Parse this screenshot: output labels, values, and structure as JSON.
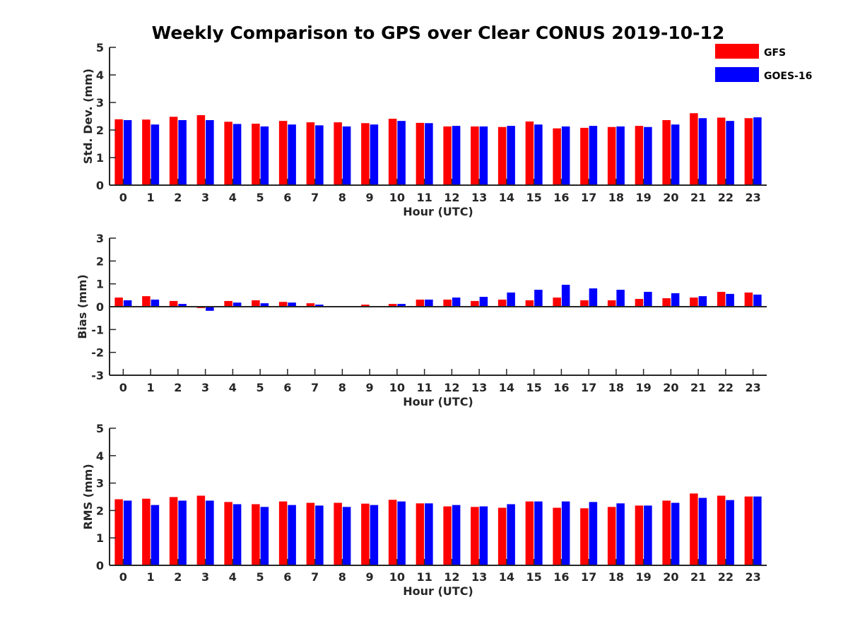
{
  "title": "Weekly Comparison to GPS over Clear CONUS 2019-10-12",
  "legend": {
    "items": [
      {
        "name": "GFS",
        "color": "#ff0000"
      },
      {
        "name": "GOES-16",
        "color": "#0000ff"
      }
    ],
    "placement": "top-right"
  },
  "chart_data": [
    {
      "type": "bar",
      "xlabel": "Hour (UTC)",
      "ylabel": "Std. Dev. (mm)",
      "ylim": [
        0,
        5
      ],
      "yticks": [
        "0",
        "1",
        "2",
        "3",
        "4",
        "5"
      ],
      "categories": [
        "0",
        "1",
        "2",
        "3",
        "4",
        "5",
        "6",
        "7",
        "8",
        "9",
        "10",
        "11",
        "12",
        "13",
        "14",
        "15",
        "16",
        "17",
        "18",
        "19",
        "20",
        "21",
        "22",
        "23"
      ],
      "series": [
        {
          "name": "GFS",
          "color": "#ff0000",
          "values": [
            2.39,
            2.38,
            2.48,
            2.54,
            2.3,
            2.23,
            2.33,
            2.28,
            2.28,
            2.25,
            2.41,
            2.26,
            2.13,
            2.13,
            2.11,
            2.31,
            2.06,
            2.08,
            2.11,
            2.15,
            2.36,
            2.61,
            2.45,
            2.43
          ]
        },
        {
          "name": "GOES-16",
          "color": "#0000ff",
          "values": [
            2.36,
            2.2,
            2.36,
            2.36,
            2.22,
            2.13,
            2.2,
            2.17,
            2.13,
            2.2,
            2.33,
            2.25,
            2.15,
            2.13,
            2.15,
            2.2,
            2.13,
            2.15,
            2.13,
            2.11,
            2.2,
            2.43,
            2.33,
            2.46
          ]
        }
      ]
    },
    {
      "type": "bar",
      "xlabel": "Hour (UTC)",
      "ylabel": "Bias (mm)",
      "ylim": [
        -3,
        3
      ],
      "yticks": [
        "-3",
        "-2",
        "-1",
        "0",
        "1",
        "2",
        "3"
      ],
      "categories": [
        "0",
        "1",
        "2",
        "3",
        "4",
        "5",
        "6",
        "7",
        "8",
        "9",
        "10",
        "11",
        "12",
        "13",
        "14",
        "15",
        "16",
        "17",
        "18",
        "19",
        "20",
        "21",
        "22",
        "23"
      ],
      "series": [
        {
          "name": "GFS",
          "color": "#ff0000",
          "values": [
            0.4,
            0.46,
            0.25,
            -0.06,
            0.25,
            0.28,
            0.21,
            0.15,
            0.03,
            0.09,
            0.12,
            0.31,
            0.31,
            0.25,
            0.31,
            0.28,
            0.4,
            0.28,
            0.28,
            0.34,
            0.37,
            0.4,
            0.65,
            0.62
          ]
        },
        {
          "name": "GOES-16",
          "color": "#0000ff",
          "values": [
            0.28,
            0.31,
            0.12,
            -0.18,
            0.18,
            0.15,
            0.18,
            0.09,
            0.0,
            0.03,
            0.12,
            0.31,
            0.4,
            0.43,
            0.62,
            0.74,
            0.96,
            0.8,
            0.74,
            0.65,
            0.59,
            0.46,
            0.56,
            0.53
          ]
        }
      ]
    },
    {
      "type": "bar",
      "xlabel": "Hour (UTC)",
      "ylabel": "RMS (mm)",
      "ylim": [
        0,
        5
      ],
      "yticks": [
        "0",
        "1",
        "2",
        "3",
        "4",
        "5"
      ],
      "categories": [
        "0",
        "1",
        "2",
        "3",
        "4",
        "5",
        "6",
        "7",
        "8",
        "9",
        "10",
        "11",
        "12",
        "13",
        "14",
        "15",
        "16",
        "17",
        "18",
        "19",
        "20",
        "21",
        "22",
        "23"
      ],
      "series": [
        {
          "name": "GFS",
          "color": "#ff0000",
          "values": [
            2.41,
            2.43,
            2.49,
            2.54,
            2.31,
            2.23,
            2.33,
            2.28,
            2.28,
            2.25,
            2.39,
            2.26,
            2.15,
            2.13,
            2.1,
            2.33,
            2.1,
            2.08,
            2.13,
            2.18,
            2.36,
            2.62,
            2.54,
            2.51
          ]
        },
        {
          "name": "GOES-16",
          "color": "#0000ff",
          "values": [
            2.36,
            2.2,
            2.36,
            2.36,
            2.23,
            2.13,
            2.2,
            2.18,
            2.13,
            2.2,
            2.33,
            2.26,
            2.2,
            2.15,
            2.23,
            2.33,
            2.33,
            2.31,
            2.26,
            2.18,
            2.28,
            2.46,
            2.38,
            2.51
          ]
        }
      ]
    }
  ]
}
